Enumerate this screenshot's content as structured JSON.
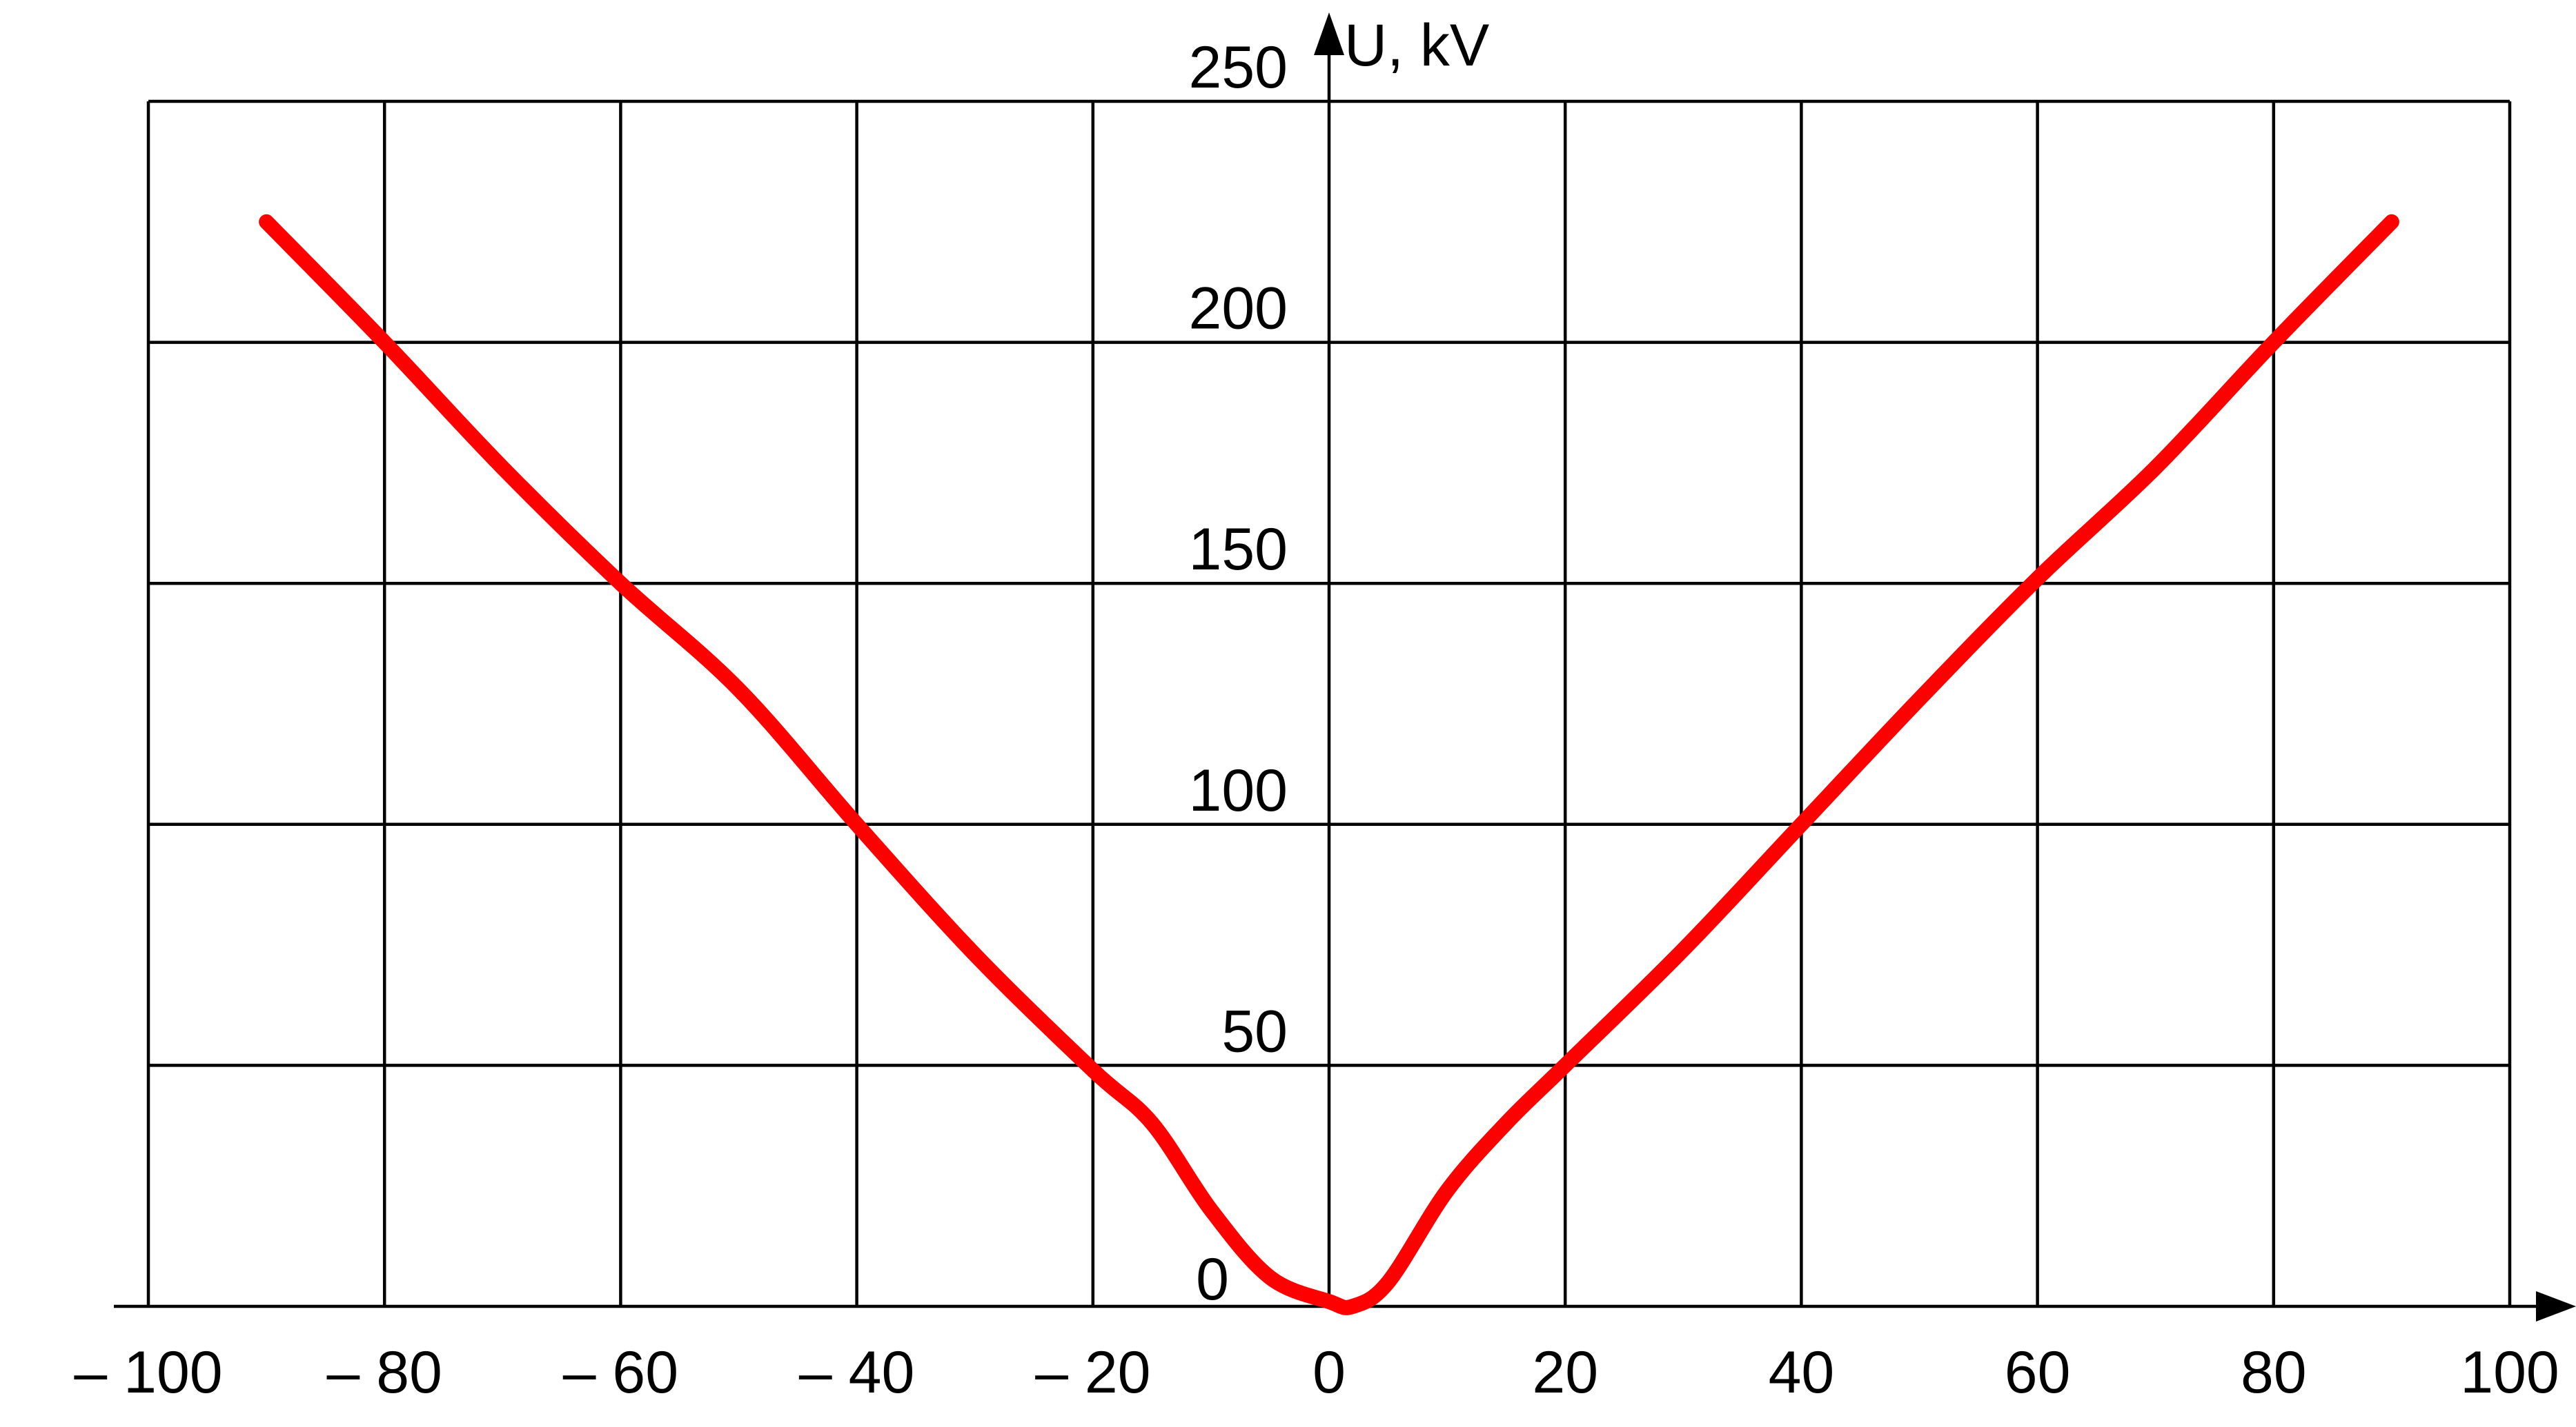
{
  "chart_data": {
    "type": "line",
    "ylabel": "U, kV",
    "xlabel": "",
    "xlim": [
      -100,
      100
    ],
    "ylim": [
      0,
      250
    ],
    "grid": true,
    "x_ticks": [
      {
        "value": -100,
        "label": "– 100"
      },
      {
        "value": -80,
        "label": "– 80"
      },
      {
        "value": -60,
        "label": "– 60"
      },
      {
        "value": -40,
        "label": "– 40"
      },
      {
        "value": -20,
        "label": "– 20"
      },
      {
        "value": 0,
        "label": "0"
      },
      {
        "value": 20,
        "label": "20"
      },
      {
        "value": 40,
        "label": "40"
      },
      {
        "value": 60,
        "label": "60"
      },
      {
        "value": 80,
        "label": "80"
      },
      {
        "value": 100,
        "label": "100"
      }
    ],
    "y_ticks": [
      {
        "value": 0,
        "label": "0"
      },
      {
        "value": 50,
        "label": "50"
      },
      {
        "value": 100,
        "label": "100"
      },
      {
        "value": 150,
        "label": "150"
      },
      {
        "value": 200,
        "label": "200"
      },
      {
        "value": 250,
        "label": "250"
      }
    ],
    "series": [
      {
        "color": "#ff0000",
        "x": [
          -90,
          -80,
          -70,
          -60,
          -50,
          -40,
          -30,
          -20,
          -15,
          -10,
          -5,
          0,
          2,
          5,
          10,
          15,
          20,
          30,
          40,
          50,
          60,
          70,
          80,
          90
        ],
        "y": [
          225,
          200,
          174,
          150,
          128,
          100,
          73,
          49,
          38,
          20,
          6,
          1,
          0,
          5,
          24,
          38,
          50,
          74,
          100,
          126,
          151,
          174,
          200,
          225
        ]
      }
    ]
  }
}
